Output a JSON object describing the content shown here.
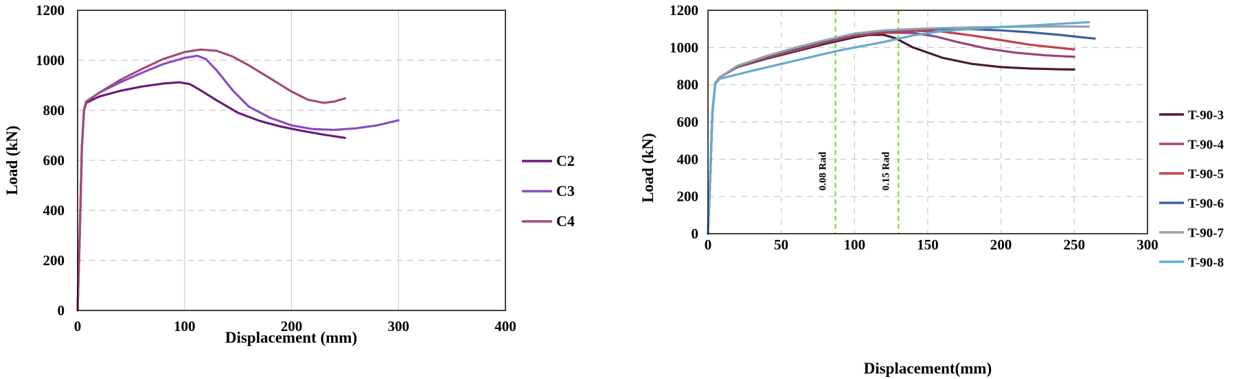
{
  "chart_data": [
    {
      "type": "line",
      "xlabel": "Displacement (mm)",
      "ylabel": "Load (kN)",
      "xlim": [
        0,
        400
      ],
      "ylim": [
        0,
        1200
      ],
      "xticks": [
        "0",
        "100",
        "200",
        "300",
        "400"
      ],
      "yticks": [
        "0",
        "200",
        "400",
        "600",
        "800",
        "1000",
        "1200"
      ],
      "grid": true,
      "legend_position": "right",
      "series": [
        {
          "name": "C2",
          "color": "#6a1a7e",
          "points": [
            [
              0,
              0
            ],
            [
              2,
              300
            ],
            [
              4,
              650
            ],
            [
              6,
              800
            ],
            [
              8,
              830
            ],
            [
              20,
              855
            ],
            [
              40,
              878
            ],
            [
              60,
              895
            ],
            [
              80,
              907
            ],
            [
              95,
              912
            ],
            [
              105,
              905
            ],
            [
              115,
              880
            ],
            [
              130,
              840
            ],
            [
              150,
              790
            ],
            [
              170,
              758
            ],
            [
              190,
              735
            ],
            [
              210,
              718
            ],
            [
              230,
              703
            ],
            [
              250,
              690
            ]
          ]
        },
        {
          "name": "C3",
          "color": "#8a4bc4",
          "points": [
            [
              0,
              0
            ],
            [
              2,
              300
            ],
            [
              4,
              650
            ],
            [
              6,
              800
            ],
            [
              8,
              835
            ],
            [
              20,
              870
            ],
            [
              40,
              912
            ],
            [
              60,
              950
            ],
            [
              80,
              985
            ],
            [
              100,
              1010
            ],
            [
              112,
              1018
            ],
            [
              120,
              1005
            ],
            [
              130,
              960
            ],
            [
              145,
              880
            ],
            [
              160,
              815
            ],
            [
              180,
              770
            ],
            [
              200,
              740
            ],
            [
              220,
              725
            ],
            [
              240,
              722
            ],
            [
              260,
              728
            ],
            [
              280,
              740
            ],
            [
              300,
              760
            ]
          ]
        },
        {
          "name": "C4",
          "color": "#a24a78",
          "points": [
            [
              0,
              0
            ],
            [
              2,
              300
            ],
            [
              4,
              650
            ],
            [
              6,
              800
            ],
            [
              8,
              835
            ],
            [
              20,
              870
            ],
            [
              40,
              922
            ],
            [
              60,
              965
            ],
            [
              80,
              1005
            ],
            [
              100,
              1033
            ],
            [
              115,
              1043
            ],
            [
              130,
              1038
            ],
            [
              145,
              1015
            ],
            [
              160,
              980
            ],
            [
              180,
              928
            ],
            [
              200,
              875
            ],
            [
              215,
              843
            ],
            [
              230,
              830
            ],
            [
              240,
              835
            ],
            [
              250,
              848
            ]
          ]
        }
      ]
    },
    {
      "type": "line",
      "xlabel": "Displacement(mm)",
      "ylabel": "Load (kN)",
      "xlim": [
        0,
        300
      ],
      "ylim": [
        0,
        1200
      ],
      "xticks": [
        "0",
        "50",
        "100",
        "150",
        "200",
        "250",
        "300"
      ],
      "yticks": [
        "0",
        "200",
        "400",
        "600",
        "800",
        "1000",
        "1200"
      ],
      "grid": true,
      "legend_position": "right",
      "annotations": [
        {
          "label": "0.08 Rad",
          "x": 87
        },
        {
          "label": "0.15 Rad",
          "x": 130
        }
      ],
      "series": [
        {
          "name": "T-90-3",
          "color": "#4a1a2c",
          "points": [
            [
              0,
              0
            ],
            [
              1.5,
              300
            ],
            [
              3,
              650
            ],
            [
              5,
              810
            ],
            [
              8,
              840
            ],
            [
              20,
              895
            ],
            [
              40,
              940
            ],
            [
              60,
              980
            ],
            [
              80,
              1020
            ],
            [
              100,
              1055
            ],
            [
              110,
              1068
            ],
            [
              120,
              1068
            ],
            [
              128,
              1050
            ],
            [
              140,
              1000
            ],
            [
              160,
              945
            ],
            [
              180,
              912
            ],
            [
              200,
              895
            ],
            [
              220,
              887
            ],
            [
              240,
              883
            ],
            [
              250,
              882
            ]
          ]
        },
        {
          "name": "T-90-4",
          "color": "#9b4478",
          "points": [
            [
              0,
              0
            ],
            [
              1.5,
              300
            ],
            [
              3,
              650
            ],
            [
              5,
              810
            ],
            [
              8,
              840
            ],
            [
              20,
              897
            ],
            [
              40,
              945
            ],
            [
              60,
              985
            ],
            [
              80,
              1028
            ],
            [
              100,
              1063
            ],
            [
              120,
              1080
            ],
            [
              140,
              1078
            ],
            [
              155,
              1060
            ],
            [
              170,
              1030
            ],
            [
              190,
              995
            ],
            [
              210,
              972
            ],
            [
              230,
              958
            ],
            [
              250,
              950
            ]
          ]
        },
        {
          "name": "T-90-5",
          "color": "#c0404a",
          "points": [
            [
              0,
              0
            ],
            [
              1.5,
              300
            ],
            [
              3,
              650
            ],
            [
              5,
              810
            ],
            [
              8,
              840
            ],
            [
              20,
              898
            ],
            [
              40,
              947
            ],
            [
              60,
              988
            ],
            [
              80,
              1030
            ],
            [
              100,
              1065
            ],
            [
              120,
              1082
            ],
            [
              140,
              1090
            ],
            [
              160,
              1085
            ],
            [
              180,
              1065
            ],
            [
              200,
              1040
            ],
            [
              220,
              1015
            ],
            [
              240,
              998
            ],
            [
              250,
              990
            ]
          ]
        },
        {
          "name": "T-90-6",
          "color": "#3a5ea0",
          "points": [
            [
              0,
              0
            ],
            [
              1.5,
              300
            ],
            [
              3,
              650
            ],
            [
              5,
              810
            ],
            [
              8,
              840
            ],
            [
              20,
              900
            ],
            [
              40,
              952
            ],
            [
              60,
              995
            ],
            [
              80,
              1036
            ],
            [
              100,
              1072
            ],
            [
              120,
              1090
            ],
            [
              140,
              1097
            ],
            [
              160,
              1100
            ],
            [
              180,
              1098
            ],
            [
              200,
              1092
            ],
            [
              220,
              1082
            ],
            [
              240,
              1068
            ],
            [
              255,
              1055
            ],
            [
              264,
              1048
            ]
          ]
        },
        {
          "name": "T-90-7",
          "color": "#9aa0aa",
          "points": [
            [
              0,
              0
            ],
            [
              1.5,
              300
            ],
            [
              3,
              650
            ],
            [
              5,
              810
            ],
            [
              8,
              840
            ],
            [
              20,
              902
            ],
            [
              40,
              955
            ],
            [
              60,
              1000
            ],
            [
              80,
              1040
            ],
            [
              100,
              1075
            ],
            [
              120,
              1092
            ],
            [
              140,
              1100
            ],
            [
              160,
              1105
            ],
            [
              180,
              1108
            ],
            [
              200,
              1110
            ],
            [
              220,
              1112
            ],
            [
              240,
              1113
            ],
            [
              260,
              1112
            ]
          ]
        },
        {
          "name": "T-90-8",
          "color": "#62abcf",
          "points": [
            [
              0,
              0
            ],
            [
              1.5,
              300
            ],
            [
              3,
              650
            ],
            [
              5,
              805
            ],
            [
              8,
              832
            ],
            [
              30,
              875
            ],
            [
              60,
              930
            ],
            [
              90,
              985
            ],
            [
              120,
              1030
            ],
            [
              140,
              1065
            ],
            [
              160,
              1088
            ],
            [
              180,
              1100
            ],
            [
              200,
              1110
            ],
            [
              220,
              1118
            ],
            [
              240,
              1127
            ],
            [
              260,
              1136
            ]
          ]
        }
      ]
    }
  ]
}
